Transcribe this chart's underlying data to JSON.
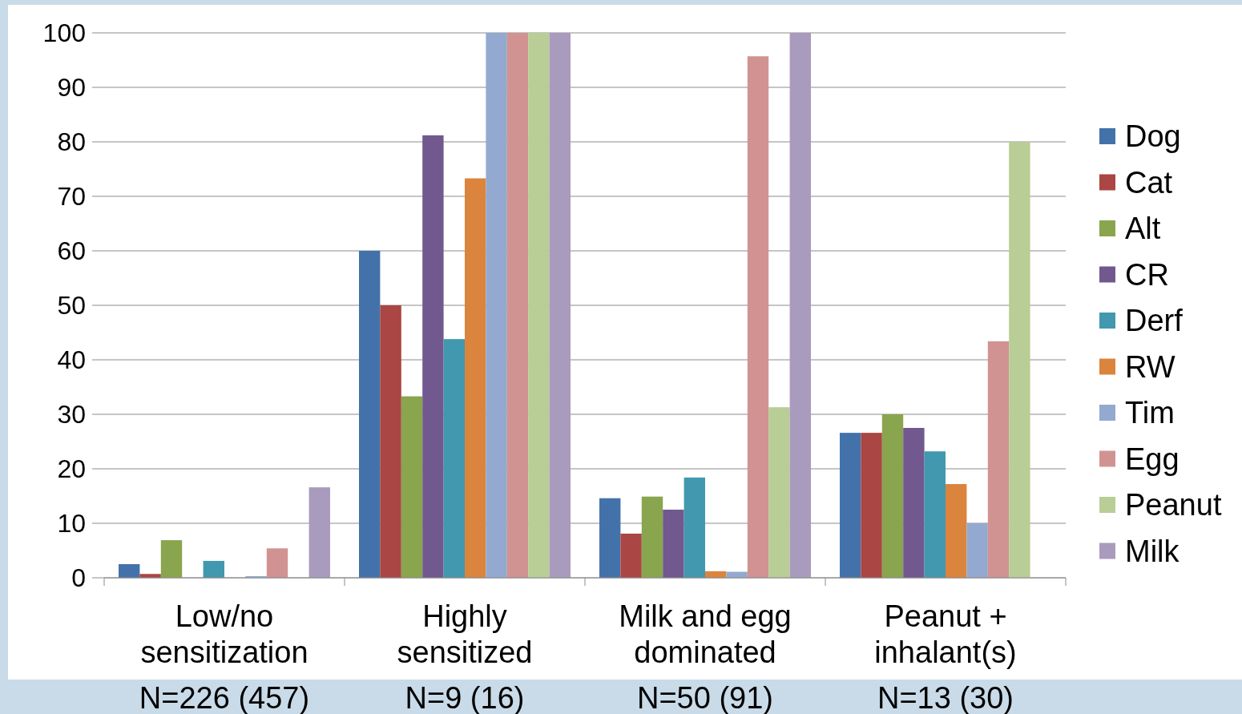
{
  "chart_data": {
    "type": "bar",
    "categories": [
      "Low/no sensitization",
      "Highly sensitized",
      "Milk and egg dominated",
      "Peanut + inhalant(s)"
    ],
    "series": [
      {
        "name": "Dog",
        "color": "#4372aa",
        "values": [
          2.5,
          60,
          14.6,
          26.6
        ]
      },
      {
        "name": "Cat",
        "color": "#aa4643",
        "values": [
          0.7,
          50,
          8.1,
          26.6
        ]
      },
      {
        "name": "Alt",
        "color": "#89a54e",
        "values": [
          6.9,
          33.3,
          14.9,
          30
        ]
      },
      {
        "name": "CR",
        "color": "#71588f",
        "values": [
          0,
          81.2,
          12.5,
          27.5
        ]
      },
      {
        "name": "Derf",
        "color": "#4198af",
        "values": [
          3.1,
          43.8,
          18.4,
          23.2
        ]
      },
      {
        "name": "RW",
        "color": "#db843d",
        "values": [
          0,
          73.3,
          1.2,
          17.2
        ]
      },
      {
        "name": "Tim",
        "color": "#93a9cf",
        "values": [
          0.3,
          100,
          1.1,
          10
        ]
      },
      {
        "name": "Egg",
        "color": "#d19392",
        "values": [
          5.4,
          100,
          95.7,
          43.4
        ]
      },
      {
        "name": "Peanut",
        "color": "#b9cd96",
        "values": [
          0,
          100,
          31.3,
          80
        ]
      },
      {
        "name": "Milk",
        "color": "#a99bbd",
        "values": [
          16.6,
          100,
          100,
          0
        ]
      }
    ],
    "ylim": [
      0,
      100
    ],
    "yticks": [
      0,
      10,
      20,
      30,
      40,
      50,
      60,
      70,
      80,
      90,
      100
    ],
    "grid": "y",
    "legend": "right",
    "annotations": [
      "N=226 (457)",
      "N=9 (16)",
      "N=50 (91)",
      "N=13 (30)"
    ]
  }
}
